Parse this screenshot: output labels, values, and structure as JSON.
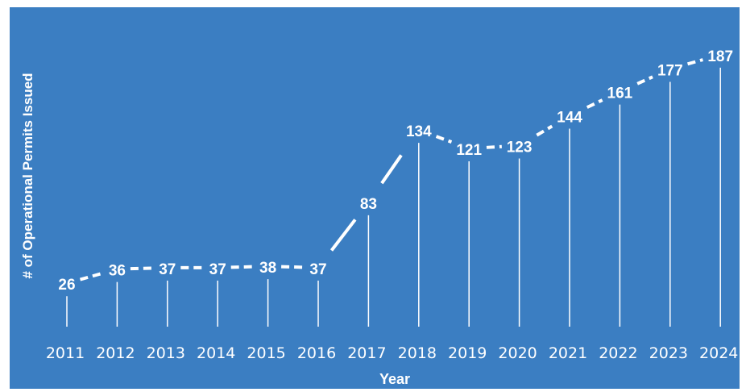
{
  "chart_data": {
    "type": "line",
    "xlabel": "Year",
    "ylabel": "# of Operational Permits Issued",
    "categories": [
      "2011",
      "2012",
      "2013",
      "2014",
      "2015",
      "2016",
      "2017",
      "2018",
      "2019",
      "2020",
      "2021",
      "2022",
      "2023",
      "2024"
    ],
    "series": [
      {
        "values": [
          26,
          36,
          37,
          37,
          38,
          37,
          83,
          134,
          121,
          123,
          144,
          161,
          177,
          187
        ]
      }
    ],
    "ylim": [
      0,
      200
    ],
    "grid": false,
    "drop_lines": true,
    "line_style": "dashed-with-solid-segments",
    "colors": {
      "background": "#3b7ec2",
      "foreground": "#ffffff"
    }
  }
}
